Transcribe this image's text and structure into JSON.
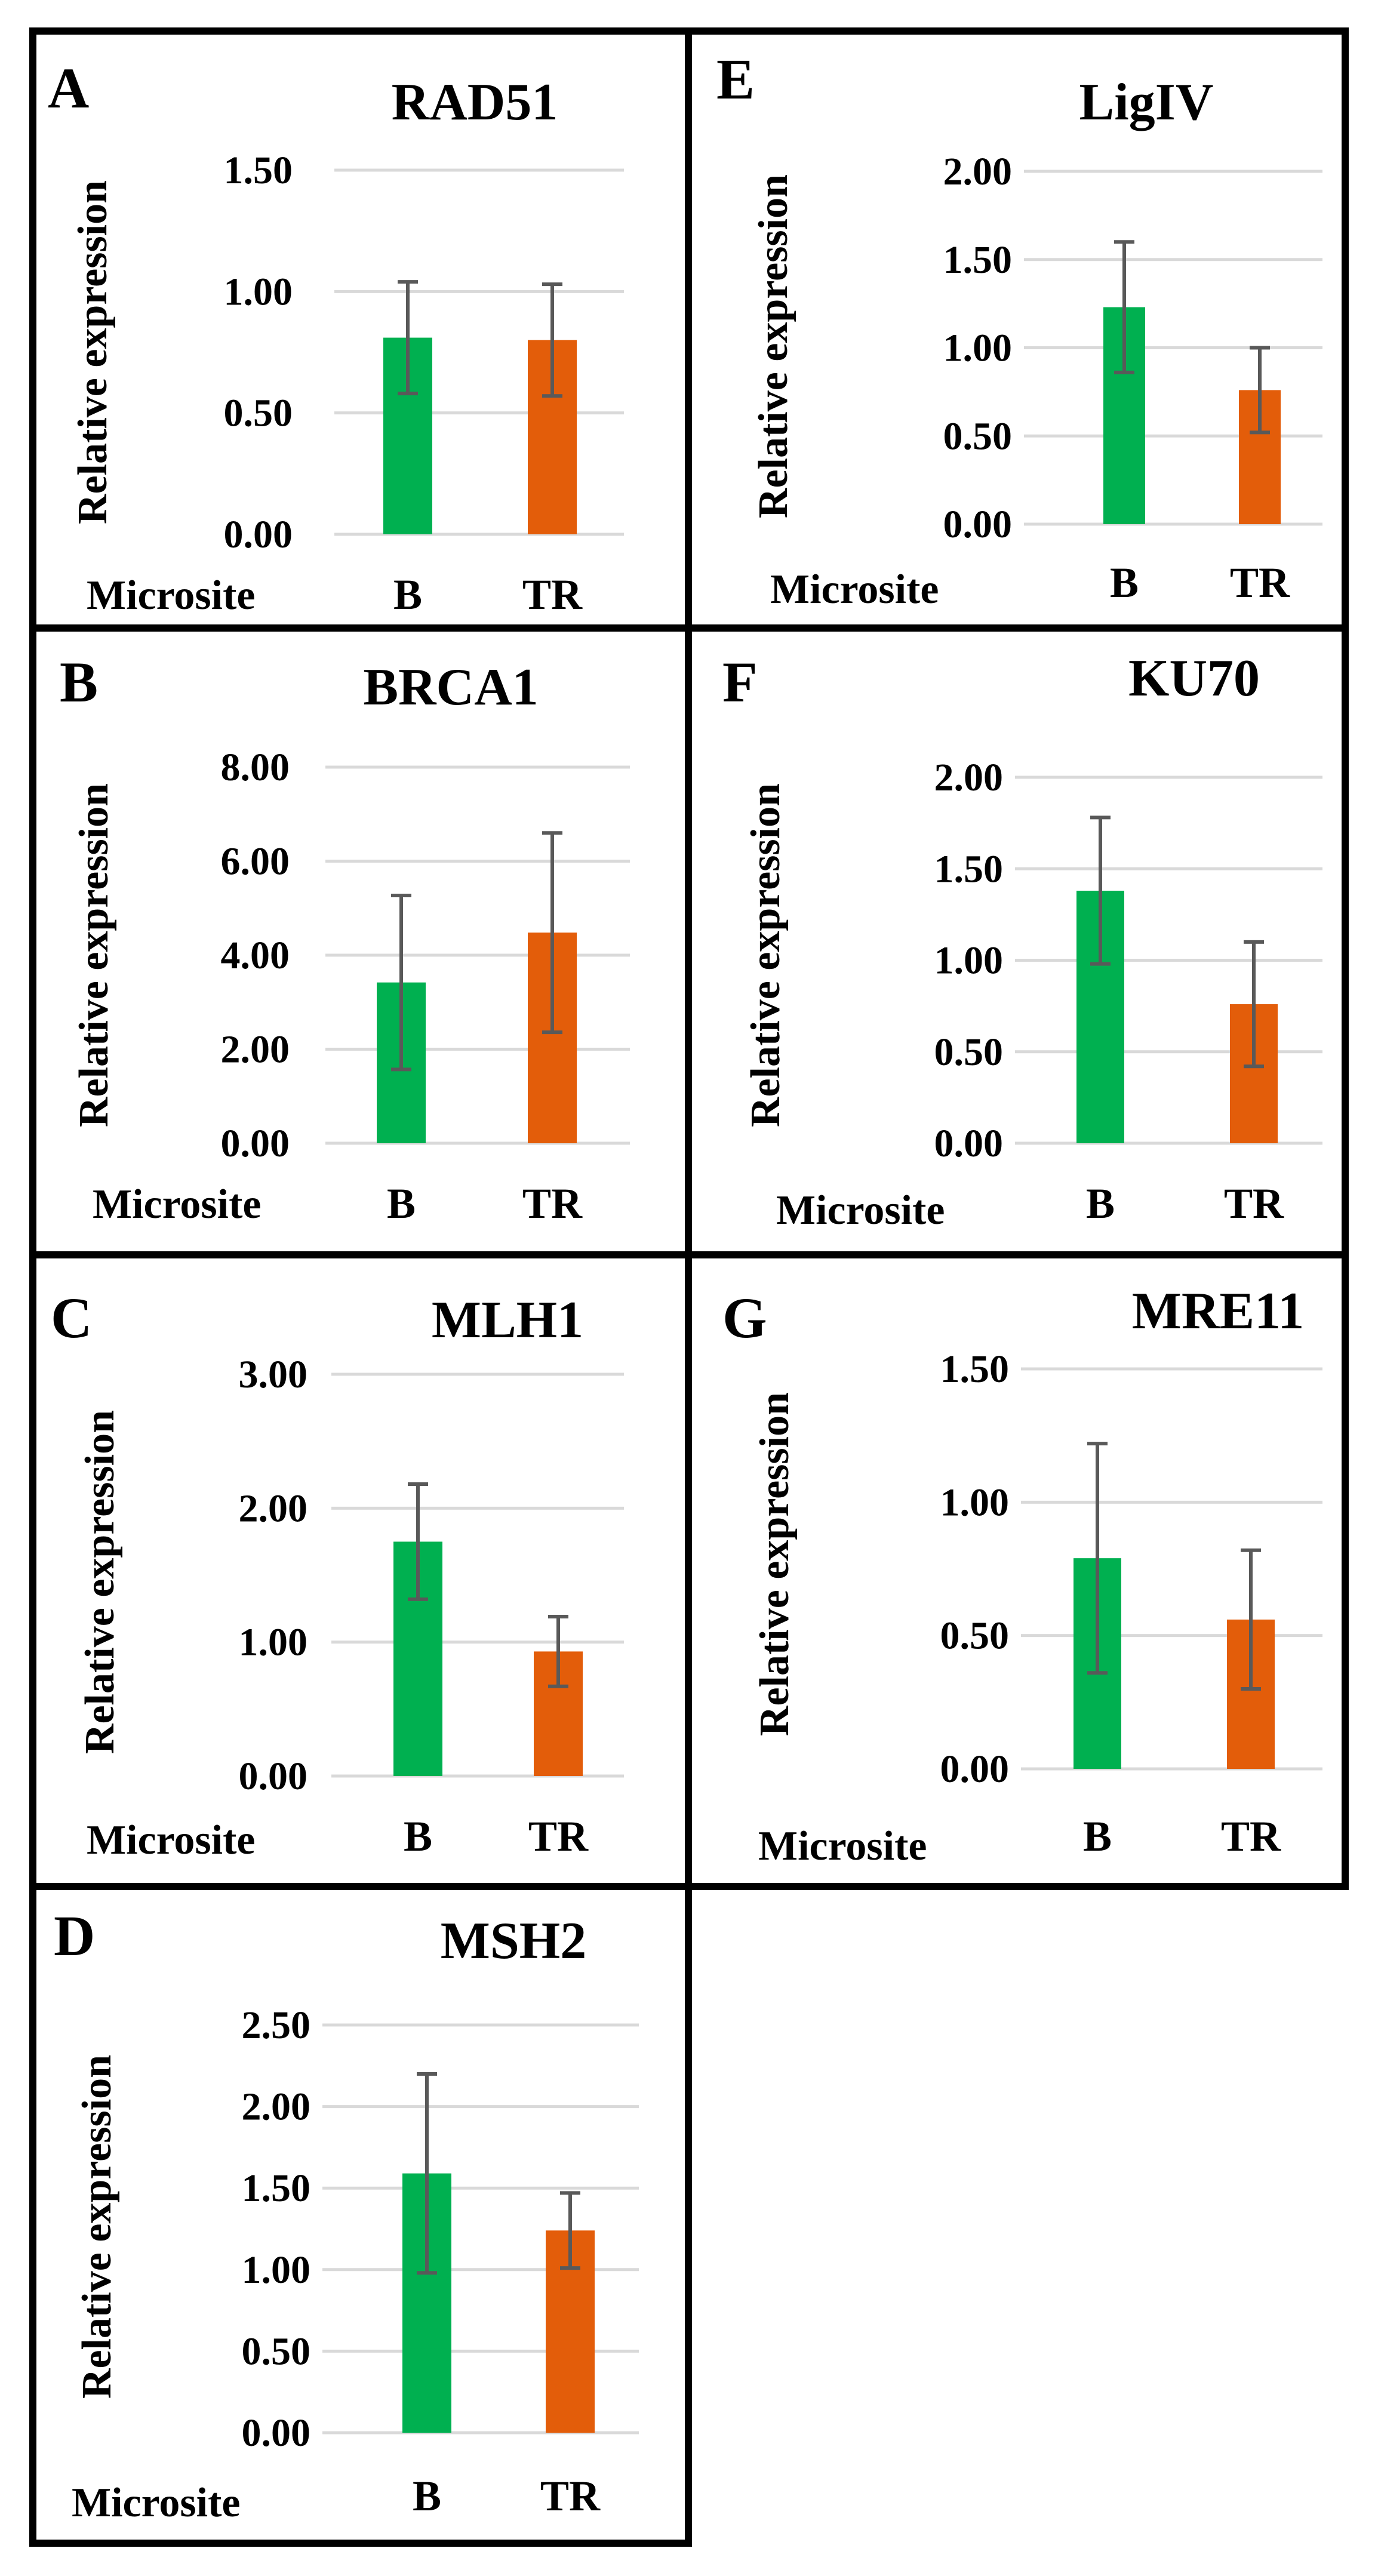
{
  "figure": {
    "x_axis_label": "Microsite",
    "y_axis_label": "Relative expression"
  },
  "colors": {
    "B": "#00b050",
    "TR": "#e35d0a",
    "error_bar": "#595959",
    "grid": "#d9d9d9"
  },
  "chart_data": [
    {
      "panel": "A",
      "type": "bar",
      "title": "RAD51",
      "categories": [
        "B",
        "TR"
      ],
      "values": [
        0.81,
        0.8
      ],
      "errors": [
        0.23,
        0.23
      ],
      "ylim": [
        0,
        1.5
      ],
      "yticks": [
        "0.00",
        "0.50",
        "1.00",
        "1.50"
      ],
      "xlabel": "Microsite",
      "ylabel": "Relative expression"
    },
    {
      "panel": "B",
      "type": "bar",
      "title": "BRCA1",
      "categories": [
        "B",
        "TR"
      ],
      "values": [
        3.42,
        4.48
      ],
      "errors": [
        1.85,
        2.12
      ],
      "ylim": [
        0,
        8
      ],
      "yticks": [
        "0.00",
        "2.00",
        "4.00",
        "6.00",
        "8.00"
      ],
      "xlabel": "Microsite",
      "ylabel": "Relative expression"
    },
    {
      "panel": "C",
      "type": "bar",
      "title": "MLH1",
      "categories": [
        "B",
        "TR"
      ],
      "values": [
        1.75,
        0.93
      ],
      "errors": [
        0.43,
        0.26
      ],
      "ylim": [
        0,
        3
      ],
      "yticks": [
        "0.00",
        "1.00",
        "2.00",
        "3.00"
      ],
      "xlabel": "Microsite",
      "ylabel": "Relative expression"
    },
    {
      "panel": "D",
      "type": "bar",
      "title": "MSH2",
      "categories": [
        "B",
        "TR"
      ],
      "values": [
        1.59,
        1.24
      ],
      "errors": [
        0.61,
        0.23
      ],
      "ylim": [
        0,
        2.5
      ],
      "yticks": [
        "0.00",
        "0.50",
        "1.00",
        "1.50",
        "2.00",
        "2.50"
      ],
      "xlabel": "Microsite",
      "ylabel": "Relative expression"
    },
    {
      "panel": "E",
      "type": "bar",
      "title": "LigIV",
      "categories": [
        "B",
        "TR"
      ],
      "values": [
        1.23,
        0.76
      ],
      "errors": [
        0.37,
        0.24
      ],
      "ylim": [
        0,
        2
      ],
      "yticks": [
        "0.00",
        "0.50",
        "1.00",
        "1.50",
        "2.00"
      ],
      "xlabel": "Microsite",
      "ylabel": "Relative expression"
    },
    {
      "panel": "F",
      "type": "bar",
      "title": "KU70",
      "categories": [
        "B",
        "TR"
      ],
      "values": [
        1.38,
        0.76
      ],
      "errors": [
        0.4,
        0.34
      ],
      "ylim": [
        0,
        2
      ],
      "yticks": [
        "0.00",
        "0.50",
        "1.00",
        "1.50",
        "2.00"
      ],
      "xlabel": "Microsite",
      "ylabel": "Relative expression"
    },
    {
      "panel": "G",
      "type": "bar",
      "title": "MRE11",
      "categories": [
        "B",
        "TR"
      ],
      "values": [
        0.79,
        0.56
      ],
      "errors": [
        0.43,
        0.26
      ],
      "ylim": [
        0,
        1.5
      ],
      "yticks": [
        "0.00",
        "0.50",
        "1.00",
        "1.50"
      ],
      "xlabel": "Microsite",
      "ylabel": "Relative expression"
    }
  ]
}
